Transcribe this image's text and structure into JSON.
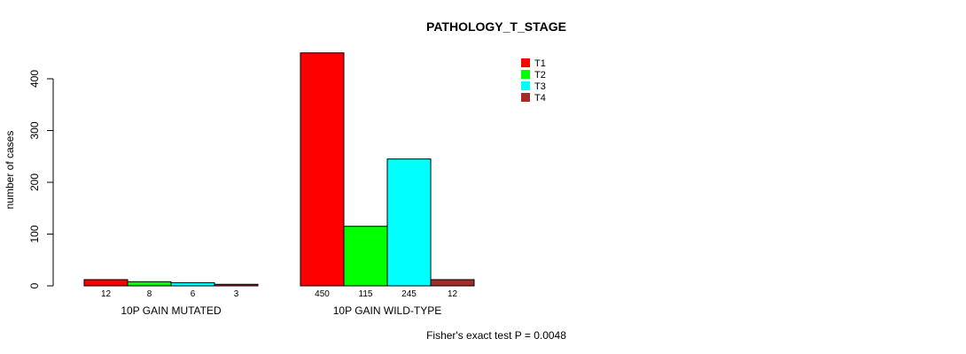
{
  "chart_data": {
    "type": "bar",
    "title": "PATHOLOGY_T_STAGE",
    "ylabel": "number of cases",
    "xlabel": "",
    "ylim": [
      0,
      400
    ],
    "yticks": [
      0,
      100,
      200,
      300,
      400
    ],
    "groups": [
      "10P GAIN MUTATED",
      "10P GAIN WILD-TYPE"
    ],
    "series": [
      {
        "name": "T1",
        "color": "#ff0000",
        "values": [
          12,
          450
        ]
      },
      {
        "name": "T2",
        "color": "#00ff00",
        "values": [
          8,
          115
        ]
      },
      {
        "name": "T3",
        "color": "#00ffff",
        "values": [
          6,
          245
        ]
      },
      {
        "name": "T4",
        "color": "#a52a2a",
        "values": [
          3,
          12
        ]
      }
    ],
    "legend_position": "top-right",
    "footnote": "Fisher's exact test P = 0.0048"
  }
}
